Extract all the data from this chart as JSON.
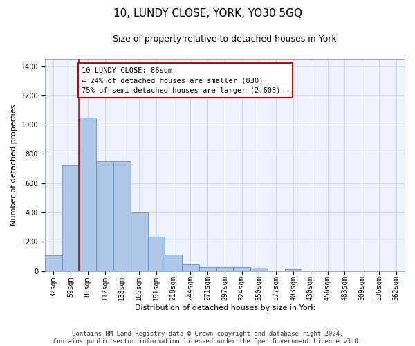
{
  "title": "10, LUNDY CLOSE, YORK, YO30 5GQ",
  "subtitle": "Size of property relative to detached houses in York",
  "xlabel": "Distribution of detached houses by size in York",
  "ylabel": "Number of detached properties",
  "categories": [
    "32sqm",
    "59sqm",
    "85sqm",
    "112sqm",
    "138sqm",
    "165sqm",
    "191sqm",
    "218sqm",
    "244sqm",
    "271sqm",
    "297sqm",
    "324sqm",
    "350sqm",
    "377sqm",
    "403sqm",
    "430sqm",
    "456sqm",
    "483sqm",
    "509sqm",
    "536sqm",
    "562sqm"
  ],
  "values": [
    107,
    720,
    1048,
    748,
    748,
    400,
    235,
    112,
    45,
    27,
    28,
    28,
    20,
    0,
    12,
    0,
    0,
    0,
    0,
    0,
    0
  ],
  "bar_color": "#aec6e8",
  "bar_edge_color": "#5a8fc4",
  "property_line_color": "#cc0000",
  "annotation_text": "10 LUNDY CLOSE: 86sqm\n← 24% of detached houses are smaller (830)\n75% of semi-detached houses are larger (2,608) →",
  "annotation_box_color": "#ffffff",
  "annotation_box_edgecolor": "#cc0000",
  "ylim": [
    0,
    1450
  ],
  "background_color": "#eef2fb",
  "footer_line1": "Contains HM Land Registry data © Crown copyright and database right 2024.",
  "footer_line2": "Contains public sector information licensed under the Open Government Licence v3.0.",
  "title_fontsize": 11,
  "subtitle_fontsize": 9,
  "axis_label_fontsize": 8,
  "tick_fontsize": 7,
  "annotation_fontsize": 7.5,
  "footer_fontsize": 6.5
}
